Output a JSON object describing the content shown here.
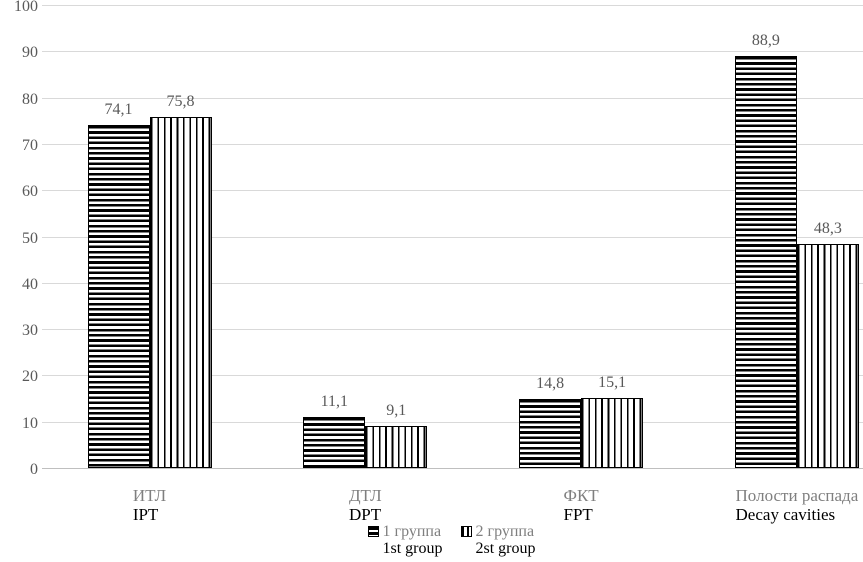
{
  "page": {
    "background": "#ffffff"
  },
  "chart_data": {
    "type": "bar",
    "title": "",
    "xlabel": "",
    "ylabel": "",
    "categories": [
      {
        "ru": "ИТЛ",
        "en": "IPT"
      },
      {
        "ru": "ДТЛ",
        "en": "DPT"
      },
      {
        "ru": "ФКТ",
        "en": "FPT"
      },
      {
        "ru": "Полости распада",
        "en": "Decay cavities"
      }
    ],
    "series": [
      {
        "name": "1 группа",
        "name_en": "1st group",
        "pattern": "horizontal-stripes",
        "values": [
          74.1,
          11.1,
          14.8,
          88.9
        ]
      },
      {
        "name": "2 группа",
        "name_en": "2st group",
        "pattern": "vertical-stripes",
        "values": [
          75.8,
          9.1,
          15.1,
          48.3
        ]
      }
    ],
    "data_labels": [
      [
        "74,1",
        "11,1",
        "14,8",
        "88,9"
      ],
      [
        "75,8",
        "9,1",
        "15,1",
        "48,3"
      ]
    ],
    "yticks": [
      "0",
      "10",
      "20",
      "30",
      "40",
      "50",
      "60",
      "70",
      "80",
      "90",
      "100"
    ],
    "ylim": [
      0,
      100
    ],
    "grid": true,
    "legend_position": "bottom",
    "decimal_separator": ","
  },
  "colors": {
    "grid": "#d9d9d9",
    "axis_line": "#bfbfbf",
    "tick_text": "#595959",
    "data_label": "#595959",
    "category_ru": "#7f7f7f",
    "category_en": "#000000",
    "legend_ru": "#7f7f7f",
    "legend_en": "#000000",
    "bar_stroke": "#000000"
  }
}
